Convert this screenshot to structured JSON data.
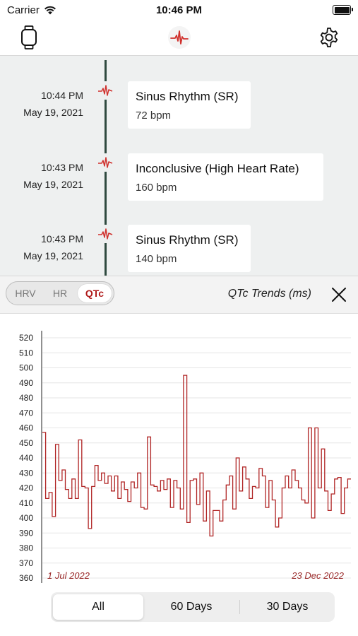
{
  "status_bar": {
    "carrier": "Carrier",
    "time": "10:46 PM"
  },
  "nav": {
    "left_icon": "watch-icon",
    "center_icon": "heart-ecg-icon",
    "right_icon": "gear-icon",
    "accent_color": "#d0312d"
  },
  "timeline": {
    "entries": [
      {
        "time": "10:44 PM",
        "date": "May 19, 2021",
        "rhythm": "Sinus Rhythm (SR)",
        "bpm": "72 bpm"
      },
      {
        "time": "10:43 PM",
        "date": "May 19, 2021",
        "rhythm": "Inconclusive (High Heart Rate)",
        "bpm": "160 bpm"
      },
      {
        "time": "10:43 PM",
        "date": "May 19, 2021",
        "rhythm": "Sinus Rhythm (SR)",
        "bpm": "140 bpm"
      }
    ]
  },
  "toolbar": {
    "segments": [
      "HRV",
      "HR",
      "QTc"
    ],
    "selected_segment": "QTc",
    "title": "QTc Trends (ms)",
    "close_icon": "close-icon"
  },
  "chart_data": {
    "type": "line",
    "step": true,
    "title": "QTc Trends (ms)",
    "ylim": [
      360,
      520
    ],
    "yticks": [
      520,
      510,
      500,
      490,
      480,
      470,
      460,
      450,
      440,
      430,
      420,
      410,
      400,
      390,
      380,
      370,
      360
    ],
    "x_start_label": "1 Jul 2022",
    "x_end_label": "23 Dec 2022",
    "grid": true,
    "color": "#b02525",
    "values": [
      457,
      413,
      417,
      401,
      449,
      425,
      432,
      419,
      413,
      426,
      413,
      452,
      421,
      420,
      393,
      421,
      435,
      425,
      430,
      423,
      428,
      418,
      428,
      413,
      424,
      419,
      411,
      424,
      420,
      430,
      407,
      406,
      454,
      422,
      421,
      418,
      425,
      419,
      426,
      407,
      425,
      420,
      406,
      495,
      397,
      425,
      426,
      409,
      430,
      398,
      418,
      388,
      405,
      405,
      398,
      412,
      422,
      428,
      406,
      440,
      418,
      434,
      426,
      413,
      421,
      420,
      433,
      428,
      407,
      425,
      412,
      394,
      400,
      420,
      428,
      420,
      432,
      425,
      420,
      412,
      410,
      460,
      400,
      460,
      420,
      446,
      418,
      405,
      416,
      426,
      427,
      403,
      420,
      426
    ]
  },
  "range_selector": {
    "options": [
      "All",
      "60 Days",
      "30 Days"
    ],
    "selected": "All"
  }
}
